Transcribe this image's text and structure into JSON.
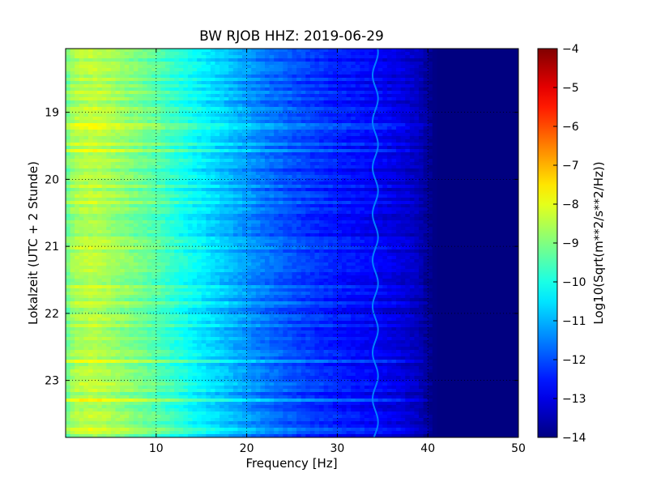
{
  "chart_data": {
    "type": "heatmap",
    "title": "BW RJOB HHZ: 2019-06-29",
    "xlabel": "Frequency [Hz]",
    "ylabel": "Lokalzeit (UTC + 2 Stunde)",
    "xlim": [
      0,
      50
    ],
    "ylim": [
      18.05,
      23.85
    ],
    "y_inverted": true,
    "x_ticks": [
      10,
      20,
      30,
      40,
      50
    ],
    "y_ticks": [
      19,
      20,
      21,
      22,
      23
    ],
    "grid": true,
    "colormap": "jet",
    "colorbar": {
      "label": "Log10(Sqrt(m**2/s**2/Hz))",
      "range": [
        -14,
        -4
      ],
      "ticks": [
        -4,
        -5,
        -6,
        -7,
        -8,
        -9,
        -10,
        -11,
        -12,
        -13,
        -14
      ]
    },
    "spectrum_profile": {
      "frequency_hz": [
        0,
        1,
        3,
        6,
        10,
        14,
        18,
        22,
        26,
        30,
        34,
        37,
        39,
        40,
        41,
        42,
        50
      ],
      "log10_amplitude": [
        -9.2,
        -8.6,
        -8.4,
        -8.8,
        -9.4,
        -10.2,
        -10.9,
        -11.6,
        -12.1,
        -12.5,
        -12.8,
        -13.1,
        -13.4,
        -13.8,
        -14.0,
        -14.0,
        -14.0
      ]
    },
    "features": [
      {
        "type": "spectral-line",
        "frequency_hz": 34.2,
        "log10_amplitude": -11.5
      }
    ]
  }
}
